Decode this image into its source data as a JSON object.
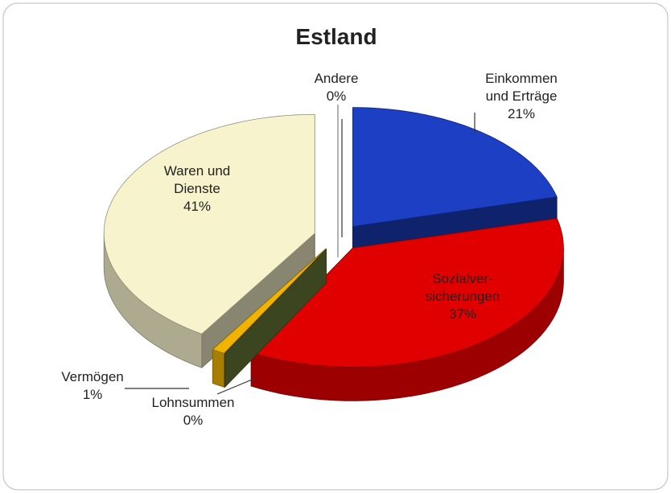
{
  "chart_data": {
    "type": "pie3d",
    "title": "Estland",
    "categories": [
      "Einkommen\nund Erträge",
      "Sozialver-\nsicherungen",
      "Lohnsummen",
      "Vermögen",
      "Waren und\nDienste",
      "Andere"
    ],
    "values": [
      21,
      37,
      0,
      1,
      41,
      0
    ],
    "value_labels": [
      "21%",
      "37%",
      "0%",
      "1%",
      "41%",
      "0%"
    ],
    "colors": [
      "#1c3fc4",
      "#e00000",
      "#6b7d3b",
      "#f0b400",
      "#f7f3cc",
      "#a0a0a0"
    ]
  }
}
